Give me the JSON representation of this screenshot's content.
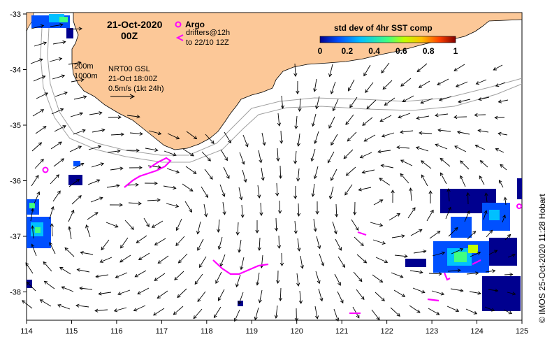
{
  "header": {
    "date": "21-Oct-2020",
    "time": "00Z"
  },
  "argo": {
    "label": "Argo",
    "drifters_label": "drifters@12h",
    "drifters_to": "to 22/10 12Z",
    "color": "#ff00ff"
  },
  "contours": {
    "depth1": "200m",
    "depth2": "1000m"
  },
  "current_info": {
    "product": "NRT00 GSL",
    "time": "21-Oct 18:00Z",
    "scale": "0.5m/s (1kt 24h)"
  },
  "colorbar": {
    "title": "std dev of 4hr SST comp",
    "ticks": [
      "0",
      "0.2",
      "0.4",
      "0.6",
      "0.8",
      "1"
    ],
    "colors": [
      "#00008f",
      "#0050ff",
      "#00c0ff",
      "#40ff80",
      "#c0ff00",
      "#ffc000",
      "#ff4000",
      "#800000"
    ]
  },
  "axes": {
    "x_ticks": [
      "114",
      "115",
      "116",
      "117",
      "118",
      "119",
      "120",
      "121",
      "122",
      "123",
      "124",
      "125"
    ],
    "y_ticks": [
      "-33",
      "-34",
      "-35",
      "-36",
      "-37",
      "-38"
    ]
  },
  "credit": "© IMOS 25-Oct-2020 11:28 Hobart",
  "colors": {
    "land": "#fcc898",
    "coast": "#000000",
    "isobath": "#a0a0a0",
    "arrow": "#000000"
  }
}
